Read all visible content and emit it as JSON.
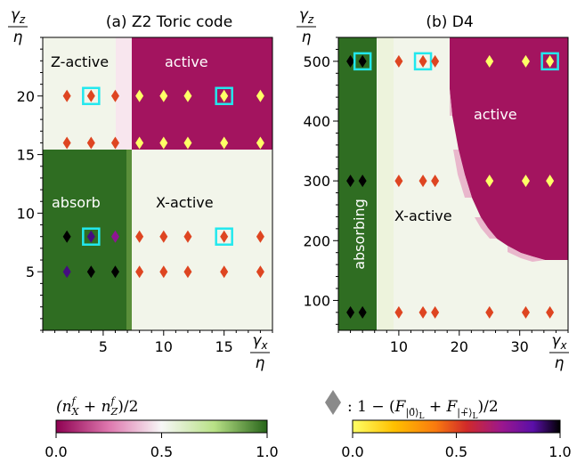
{
  "colors": {
    "magenta": "#a3145f",
    "pale": "#f2f5ea",
    "green": "#2f6d22",
    "highlight": "#22e8ee"
  },
  "colorbars": {
    "left": {
      "label": "(n_X^f + n_Z^f)/2",
      "ticks": [
        "0.0",
        "0.5",
        "1.0"
      ],
      "stops": [
        [
          "0",
          "#8e0152"
        ],
        [
          "0.25",
          "#de77ae"
        ],
        [
          "0.5",
          "#f7f7f7"
        ],
        [
          "0.75",
          "#b8e186"
        ],
        [
          "1",
          "#276419"
        ]
      ]
    },
    "right": {
      "label": ": 1 − (F|0̃⟩L + F|+̃⟩L)/2",
      "ticks": [
        "0.0",
        "0.5",
        "1.0"
      ],
      "stops": [
        [
          "0",
          "#ffff66"
        ],
        [
          "0.2",
          "#ffc000"
        ],
        [
          "0.4",
          "#f97a0f"
        ],
        [
          "0.55",
          "#d12a2a"
        ],
        [
          "0.72",
          "#9b178e"
        ],
        [
          "0.87",
          "#5a0fa8"
        ],
        [
          "1",
          "#000000"
        ]
      ]
    }
  },
  "chart_data": [
    {
      "type": "heatmap",
      "title": "(a) Z2 Toric code",
      "xlabel": "γx/η",
      "ylabel": "γz/η",
      "xlim": [
        0,
        19
      ],
      "ylim": [
        0,
        25
      ],
      "xticks": [
        5,
        10,
        15
      ],
      "yticks": [
        5,
        10,
        15,
        20
      ],
      "regions": [
        {
          "label": "Z-active",
          "value": 0.02
        },
        {
          "label": "active",
          "value": 0.0
        },
        {
          "label": "absorb",
          "value": 1.0
        },
        {
          "label": "X-active",
          "value": 0.55
        }
      ],
      "points": [
        {
          "x": 2,
          "y": 20,
          "f": 0.5
        },
        {
          "x": 4,
          "y": 20,
          "f": 0.5,
          "highlight": true
        },
        {
          "x": 6,
          "y": 20,
          "f": 0.5
        },
        {
          "x": 8,
          "y": 20,
          "f": 0.0
        },
        {
          "x": 10,
          "y": 20,
          "f": 0.0
        },
        {
          "x": 12,
          "y": 20,
          "f": 0.0
        },
        {
          "x": 15,
          "y": 20,
          "f": 0.0,
          "highlight": true
        },
        {
          "x": 18,
          "y": 20,
          "f": 0.0
        },
        {
          "x": 2,
          "y": 16,
          "f": 0.5
        },
        {
          "x": 4,
          "y": 16,
          "f": 0.5
        },
        {
          "x": 6,
          "y": 16,
          "f": 0.5
        },
        {
          "x": 8,
          "y": 16,
          "f": 0.0
        },
        {
          "x": 10,
          "y": 16,
          "f": 0.0
        },
        {
          "x": 12,
          "y": 16,
          "f": 0.0
        },
        {
          "x": 15,
          "y": 16,
          "f": 0.0
        },
        {
          "x": 18,
          "y": 16,
          "f": 0.0
        },
        {
          "x": 2,
          "y": 8,
          "f": 1.0
        },
        {
          "x": 4,
          "y": 8,
          "f": 0.9,
          "highlight": true
        },
        {
          "x": 6,
          "y": 8,
          "f": 0.75
        },
        {
          "x": 8,
          "y": 8,
          "f": 0.5
        },
        {
          "x": 10,
          "y": 8,
          "f": 0.5
        },
        {
          "x": 12,
          "y": 8,
          "f": 0.5
        },
        {
          "x": 15,
          "y": 8,
          "f": 0.5,
          "highlight": true
        },
        {
          "x": 18,
          "y": 8,
          "f": 0.5
        },
        {
          "x": 2,
          "y": 5,
          "f": 0.9
        },
        {
          "x": 4,
          "y": 5,
          "f": 1.0
        },
        {
          "x": 6,
          "y": 5,
          "f": 1.0
        },
        {
          "x": 8,
          "y": 5,
          "f": 0.5
        },
        {
          "x": 10,
          "y": 5,
          "f": 0.5
        },
        {
          "x": 12,
          "y": 5,
          "f": 0.5
        },
        {
          "x": 15,
          "y": 5,
          "f": 0.5
        },
        {
          "x": 18,
          "y": 5,
          "f": 0.5
        }
      ]
    },
    {
      "type": "heatmap",
      "title": "(b) D4",
      "xlabel": "γx/η",
      "ylabel": "γz/η",
      "xlim": [
        0,
        38
      ],
      "ylim": [
        50,
        540
      ],
      "xticks": [
        10,
        20,
        30
      ],
      "yticks": [
        100,
        200,
        300,
        400,
        500
      ],
      "regions": [
        {
          "label": "absorbing",
          "value": 1.0
        },
        {
          "label": "X-active",
          "value": 0.55
        },
        {
          "label": "active",
          "value": 0.0
        }
      ],
      "points": [
        {
          "x": 2,
          "y": 500,
          "f": 1.0
        },
        {
          "x": 4,
          "y": 500,
          "f": 1.0,
          "highlight": true
        },
        {
          "x": 10,
          "y": 500,
          "f": 0.5
        },
        {
          "x": 14,
          "y": 500,
          "f": 0.5,
          "highlight": true
        },
        {
          "x": 16,
          "y": 500,
          "f": 0.5
        },
        {
          "x": 25,
          "y": 500,
          "f": 0.0
        },
        {
          "x": 31,
          "y": 500,
          "f": 0.0
        },
        {
          "x": 35,
          "y": 500,
          "f": 0.0,
          "highlight": true
        },
        {
          "x": 2,
          "y": 300,
          "f": 1.0
        },
        {
          "x": 4,
          "y": 300,
          "f": 1.0
        },
        {
          "x": 10,
          "y": 300,
          "f": 0.5
        },
        {
          "x": 14,
          "y": 300,
          "f": 0.5
        },
        {
          "x": 16,
          "y": 300,
          "f": 0.5
        },
        {
          "x": 25,
          "y": 300,
          "f": 0.0
        },
        {
          "x": 31,
          "y": 300,
          "f": 0.0
        },
        {
          "x": 35,
          "y": 300,
          "f": 0.0
        },
        {
          "x": 2,
          "y": 80,
          "f": 1.0
        },
        {
          "x": 4,
          "y": 80,
          "f": 1.0
        },
        {
          "x": 10,
          "y": 80,
          "f": 0.5
        },
        {
          "x": 14,
          "y": 80,
          "f": 0.5
        },
        {
          "x": 16,
          "y": 80,
          "f": 0.5
        },
        {
          "x": 25,
          "y": 80,
          "f": 0.5
        },
        {
          "x": 31,
          "y": 80,
          "f": 0.5
        },
        {
          "x": 35,
          "y": 80,
          "f": 0.5
        }
      ]
    }
  ]
}
